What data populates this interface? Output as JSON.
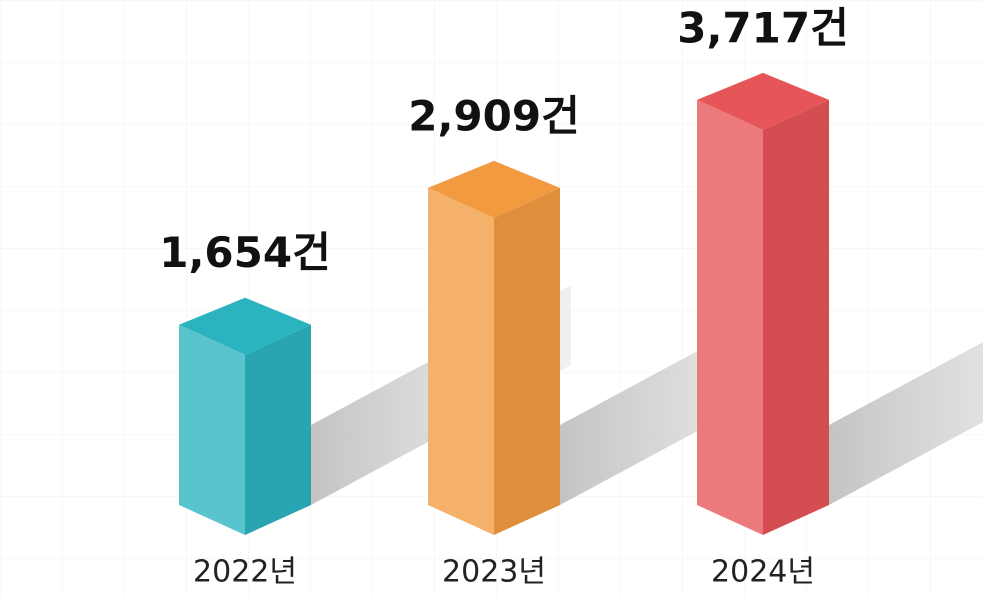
{
  "chart_data": {
    "type": "bar3d",
    "categories": [
      "2022년",
      "2023년",
      "2024년"
    ],
    "values": [
      1654,
      2909,
      3717
    ],
    "value_labels": [
      "1,654건",
      "2,909건",
      "3,717건"
    ],
    "colors": [
      "#2bb3c0",
      "#f29a40",
      "#e65558"
    ]
  }
}
